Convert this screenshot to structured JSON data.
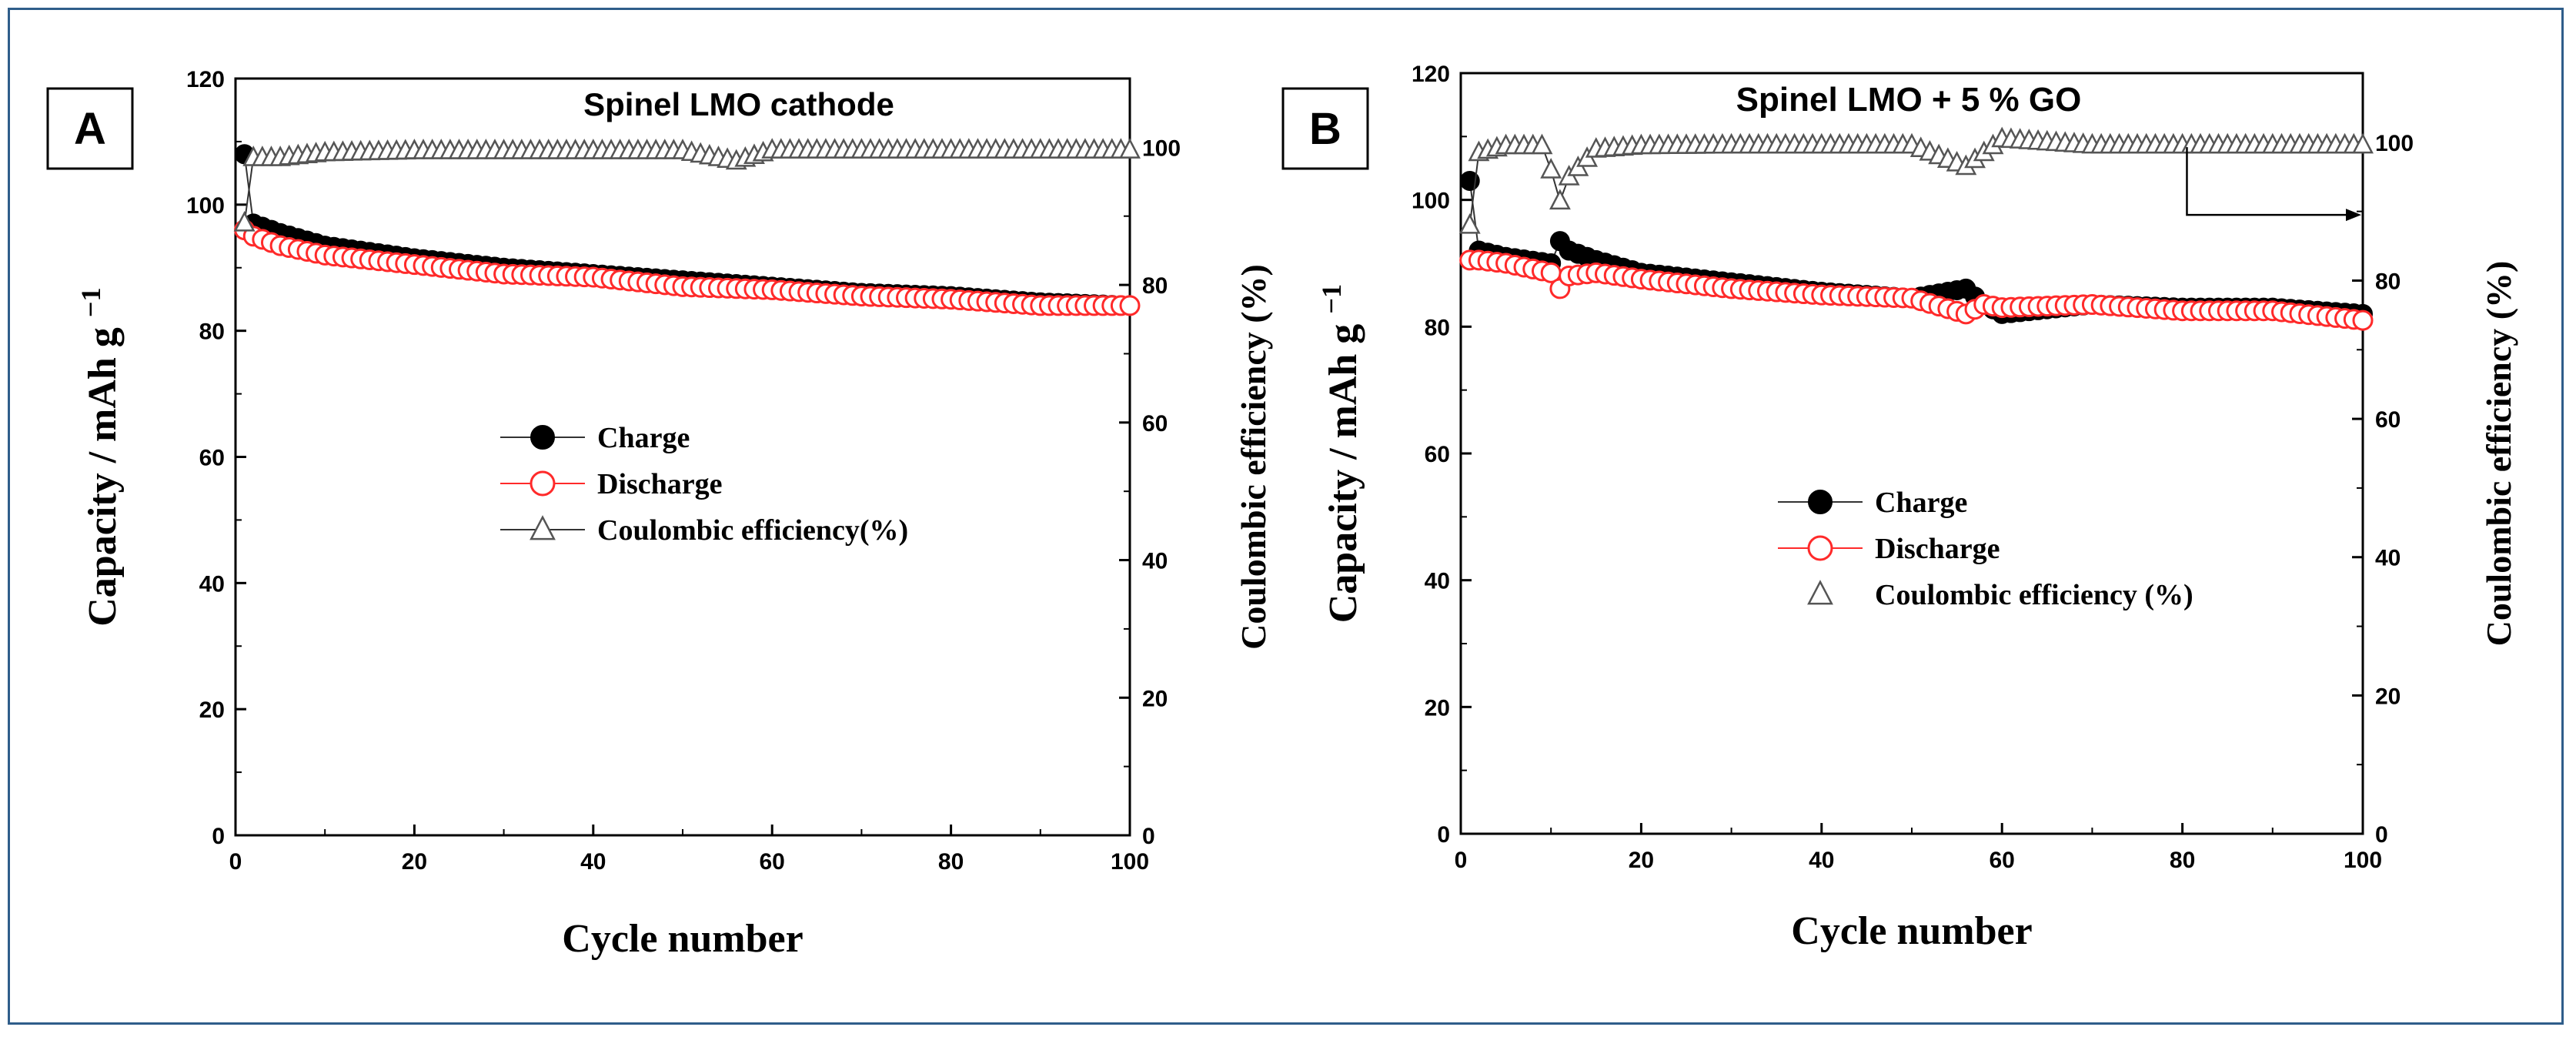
{
  "chart_data": [
    {
      "id": "A",
      "type": "scatter",
      "panel_label": "A",
      "title": "Spinel LMO cathode",
      "xlabel": "Cycle number",
      "ylabel": "Capacity / mAh g",
      "ylabel_sup": "−1",
      "y2label": "Coulombic efficiency (%)",
      "xlim": [
        0,
        100
      ],
      "ylim": [
        0,
        120
      ],
      "y2lim": [
        0,
        110
      ],
      "x_ticks": [
        0,
        20,
        40,
        60,
        80,
        100
      ],
      "y_ticks": [
        0,
        20,
        40,
        60,
        80,
        100,
        120
      ],
      "y2_ticks": [
        0,
        20,
        40,
        60,
        80,
        100
      ],
      "legend": [
        {
          "name": "Charge",
          "marker": "filled-circle",
          "color": "#000000"
        },
        {
          "name": "Discharge",
          "marker": "open-circle",
          "color": "#ff2a2a"
        },
        {
          "name": "Coulombic efficiency(%)",
          "marker": "open-triangle",
          "color": "#555555"
        }
      ],
      "series": [
        {
          "name": "Charge",
          "axis": "left",
          "x": [
            1,
            2,
            5,
            10,
            20,
            30,
            40,
            50,
            60,
            70,
            80,
            90,
            100
          ],
          "values": [
            108,
            97,
            95.5,
            93.5,
            91.5,
            90,
            89,
            88,
            87,
            86,
            85.5,
            84.5,
            84
          ]
        },
        {
          "name": "Discharge",
          "axis": "left",
          "x": [
            1,
            2,
            5,
            10,
            20,
            30,
            40,
            50,
            60,
            70,
            80,
            90,
            100
          ],
          "values": [
            96,
            95,
            93.5,
            92,
            90.5,
            89,
            88.5,
            87,
            86.5,
            85.5,
            85,
            84,
            84
          ]
        },
        {
          "name": "Coulombic efficiency(%)",
          "axis": "right",
          "x": [
            1,
            2,
            5,
            10,
            20,
            30,
            40,
            50,
            56,
            60,
            70,
            80,
            90,
            100
          ],
          "values": [
            89,
            98.5,
            98.5,
            99.2,
            99.5,
            99.5,
            99.5,
            99.5,
            98,
            99.6,
            99.6,
            99.6,
            99.6,
            99.6
          ]
        }
      ]
    },
    {
      "id": "B",
      "type": "scatter",
      "panel_label": "B",
      "title": "Spinel LMO + 5 % GO",
      "xlabel": "Cycle number",
      "ylabel": "Capacity / mAh g",
      "ylabel_sup": "−1",
      "y2label": "Coulombic efficiency (%)",
      "xlim": [
        0,
        100
      ],
      "ylim": [
        0,
        120
      ],
      "y2lim": [
        0,
        110
      ],
      "x_ticks": [
        0,
        20,
        40,
        60,
        80,
        100
      ],
      "y_ticks": [
        0,
        20,
        40,
        60,
        80,
        100,
        120
      ],
      "y2_ticks": [
        0,
        20,
        40,
        60,
        80,
        100
      ],
      "legend": [
        {
          "name": "Charge",
          "marker": "filled-circle",
          "color": "#000000"
        },
        {
          "name": "Discharge",
          "marker": "open-circle",
          "color": "#ff2a2a"
        },
        {
          "name": "Coulombic efficiency (%)",
          "marker": "open-triangle",
          "color": "#555555"
        }
      ],
      "series": [
        {
          "name": "Charge",
          "axis": "left",
          "x": [
            1,
            2,
            5,
            10,
            11,
            12,
            15,
            20,
            30,
            40,
            50,
            56,
            58,
            60,
            70,
            80,
            90,
            100
          ],
          "values": [
            103,
            92,
            91,
            90,
            93.5,
            92,
            90.5,
            88.5,
            87,
            85.5,
            84.5,
            86,
            83.5,
            82,
            83.5,
            83,
            83,
            82
          ]
        },
        {
          "name": "Discharge",
          "axis": "left",
          "x": [
            1,
            2,
            5,
            10,
            11,
            12,
            15,
            20,
            30,
            40,
            50,
            56,
            58,
            60,
            70,
            80,
            90,
            100
          ],
          "values": [
            90.5,
            90.5,
            90,
            88.5,
            86,
            88,
            88.5,
            87.5,
            86,
            85,
            84.5,
            82,
            83.5,
            83,
            83.5,
            82.5,
            82.5,
            81
          ]
        },
        {
          "name": "Coulombic efficiency (%)",
          "axis": "right",
          "x": [
            1,
            2,
            5,
            9,
            10,
            11,
            12,
            15,
            20,
            30,
            40,
            50,
            56,
            60,
            70,
            80,
            90,
            100
          ],
          "values": [
            88,
            98.5,
            99.5,
            99.5,
            96,
            91.5,
            95,
            99,
            99.5,
            99.6,
            99.6,
            99.6,
            96.5,
            100.5,
            99.6,
            99.6,
            99.6,
            99.6
          ]
        }
      ]
    }
  ]
}
